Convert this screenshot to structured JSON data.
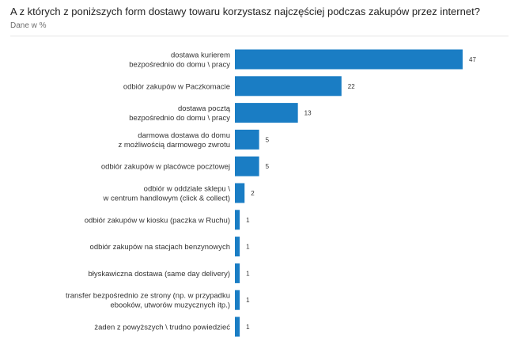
{
  "chart_data": {
    "type": "bar",
    "orientation": "horizontal",
    "title": "A z których z poniższych form dostawy towaru korzystasz najczęściej podczas zakupów przez internet?",
    "subtitle": "Dane w %",
    "categories": [
      [
        "dostawa kurierem",
        "bezpośrednio do domu \\ pracy"
      ],
      [
        "odbiór zakupów w Paczkomacie"
      ],
      [
        "dostawa pocztą",
        "bezpośrednio do domu \\ pracy"
      ],
      [
        "darmowa dostawa do domu",
        "z możliwością darmowego zwrotu"
      ],
      [
        "odbiór zakupów w placówce pocztowej"
      ],
      [
        "odbiór w oddziale sklepu \\",
        "w centrum handlowym (click & collect)"
      ],
      [
        "odbiór zakupów w kiosku (paczka w Ruchu)"
      ],
      [
        "odbiór zakupów na stacjach benzynowych"
      ],
      [
        "błyskawiczna dostawa (same day delivery)"
      ],
      [
        "transfer bezpośrednio ze strony (np. w przypadku",
        "ebooków, utworów muzycznych itp.)"
      ],
      [
        "żaden z powyższych \\ trudno powiedzieć"
      ]
    ],
    "values": [
      47,
      22,
      13,
      5,
      5,
      2,
      1,
      1,
      1,
      1,
      1
    ],
    "xlim": [
      0,
      47
    ],
    "bar_color": "#1a7dc4",
    "grid": false,
    "legend": "none"
  }
}
